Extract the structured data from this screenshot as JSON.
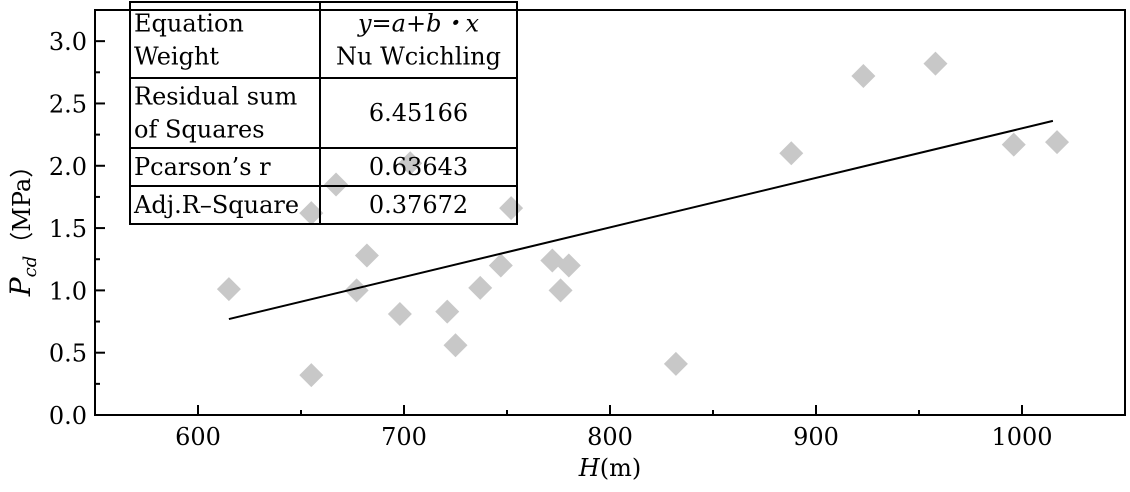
{
  "chart_data": {
    "type": "scatter",
    "xlabel": {
      "var": "H",
      "unit": "(m)"
    },
    "ylabel": {
      "var": "P",
      "sub": "cd",
      "unit": "（MPa）"
    },
    "xlim": [
      550,
      1050
    ],
    "ylim": [
      0,
      3.25
    ],
    "xticks": [
      600,
      700,
      800,
      900,
      1000
    ],
    "yticks": [
      0.0,
      0.5,
      1.0,
      1.5,
      2.0,
      2.5,
      3.0
    ],
    "xtick_labels": [
      "600",
      "700",
      "800",
      "900",
      "1000"
    ],
    "ytick_labels": [
      "0.0",
      "0.5",
      "1.0",
      "1.5",
      "2.0",
      "2.5",
      "3.0"
    ],
    "grid": false,
    "marker_color": "#c8c8c8",
    "line_color": "#000000",
    "points": [
      {
        "x": 615,
        "y": 1.01
      },
      {
        "x": 655,
        "y": 0.32
      },
      {
        "x": 655,
        "y": 1.62
      },
      {
        "x": 667,
        "y": 1.85
      },
      {
        "x": 677,
        "y": 1.0
      },
      {
        "x": 682,
        "y": 1.28
      },
      {
        "x": 698,
        "y": 0.81
      },
      {
        "x": 703,
        "y": 2.02
      },
      {
        "x": 721,
        "y": 0.83
      },
      {
        "x": 725,
        "y": 0.56
      },
      {
        "x": 737,
        "y": 1.02
      },
      {
        "x": 747,
        "y": 1.2
      },
      {
        "x": 752,
        "y": 1.66
      },
      {
        "x": 772,
        "y": 1.24
      },
      {
        "x": 776,
        "y": 1.0
      },
      {
        "x": 780,
        "y": 1.2
      },
      {
        "x": 832,
        "y": 0.41
      },
      {
        "x": 888,
        "y": 2.1
      },
      {
        "x": 923,
        "y": 2.72
      },
      {
        "x": 958,
        "y": 2.82
      },
      {
        "x": 996,
        "y": 2.17
      },
      {
        "x": 1017,
        "y": 2.19
      }
    ],
    "fit_line": {
      "x": [
        615,
        1015
      ],
      "y": [
        0.77,
        2.36
      ]
    },
    "stats_table": [
      {
        "label_lines": [
          "Equation",
          "Weight"
        ],
        "value_lines": [
          "y=a+b・x",
          "Nu Wcichling"
        ],
        "value_italic_first": true
      },
      {
        "label_lines": [
          "Residual sum",
          "of Squares"
        ],
        "value_lines": [
          "6.45166"
        ]
      },
      {
        "label_lines": [
          "Pcarson’s r"
        ],
        "value_lines": [
          "0.63643"
        ]
      },
      {
        "label_lines": [
          "Adj.R–Square"
        ],
        "value_lines": [
          "0.37672"
        ]
      }
    ]
  }
}
